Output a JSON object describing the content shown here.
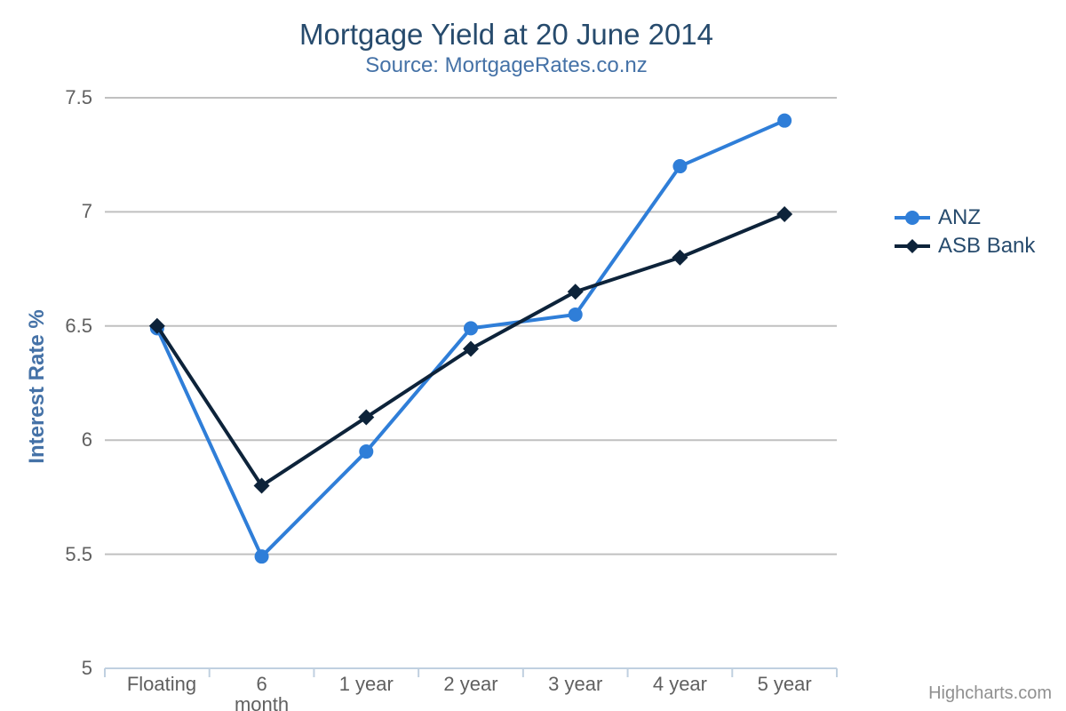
{
  "chart": {
    "credits": "Highcharts.com"
  },
  "chart_data": {
    "type": "line",
    "title": "Mortgage Yield at 20 June 2014",
    "subtitle": "Source: MortgageRates.co.nz",
    "categories": [
      "Floating",
      "6 month",
      "1 year",
      "2 year",
      "3 year",
      "4 year",
      "5 year"
    ],
    "series": [
      {
        "name": "ANZ",
        "color": "#2f7ed8",
        "marker": "circle",
        "values": [
          6.49,
          5.49,
          5.95,
          6.49,
          6.55,
          7.2,
          7.4
        ]
      },
      {
        "name": "ASB Bank",
        "color": "#0d233a",
        "marker": "diamond",
        "values": [
          6.5,
          5.8,
          6.1,
          6.4,
          6.65,
          6.8,
          6.99
        ]
      }
    ],
    "xlabel": "",
    "ylabel": "Interest Rate %",
    "ylim": [
      5,
      7.5
    ],
    "yticks": [
      5,
      5.5,
      6,
      6.5,
      7,
      7.5
    ],
    "grid": true,
    "legend_position": "right",
    "colors": {
      "title_text": "#274b6d",
      "subtitle_text": "#4572A7",
      "axis_label_text": "#606060",
      "axis_line": "#C0D0E0",
      "gridline": "#C0C0C0",
      "legend_text": "#274b6d",
      "credits_text": "#909090"
    }
  }
}
